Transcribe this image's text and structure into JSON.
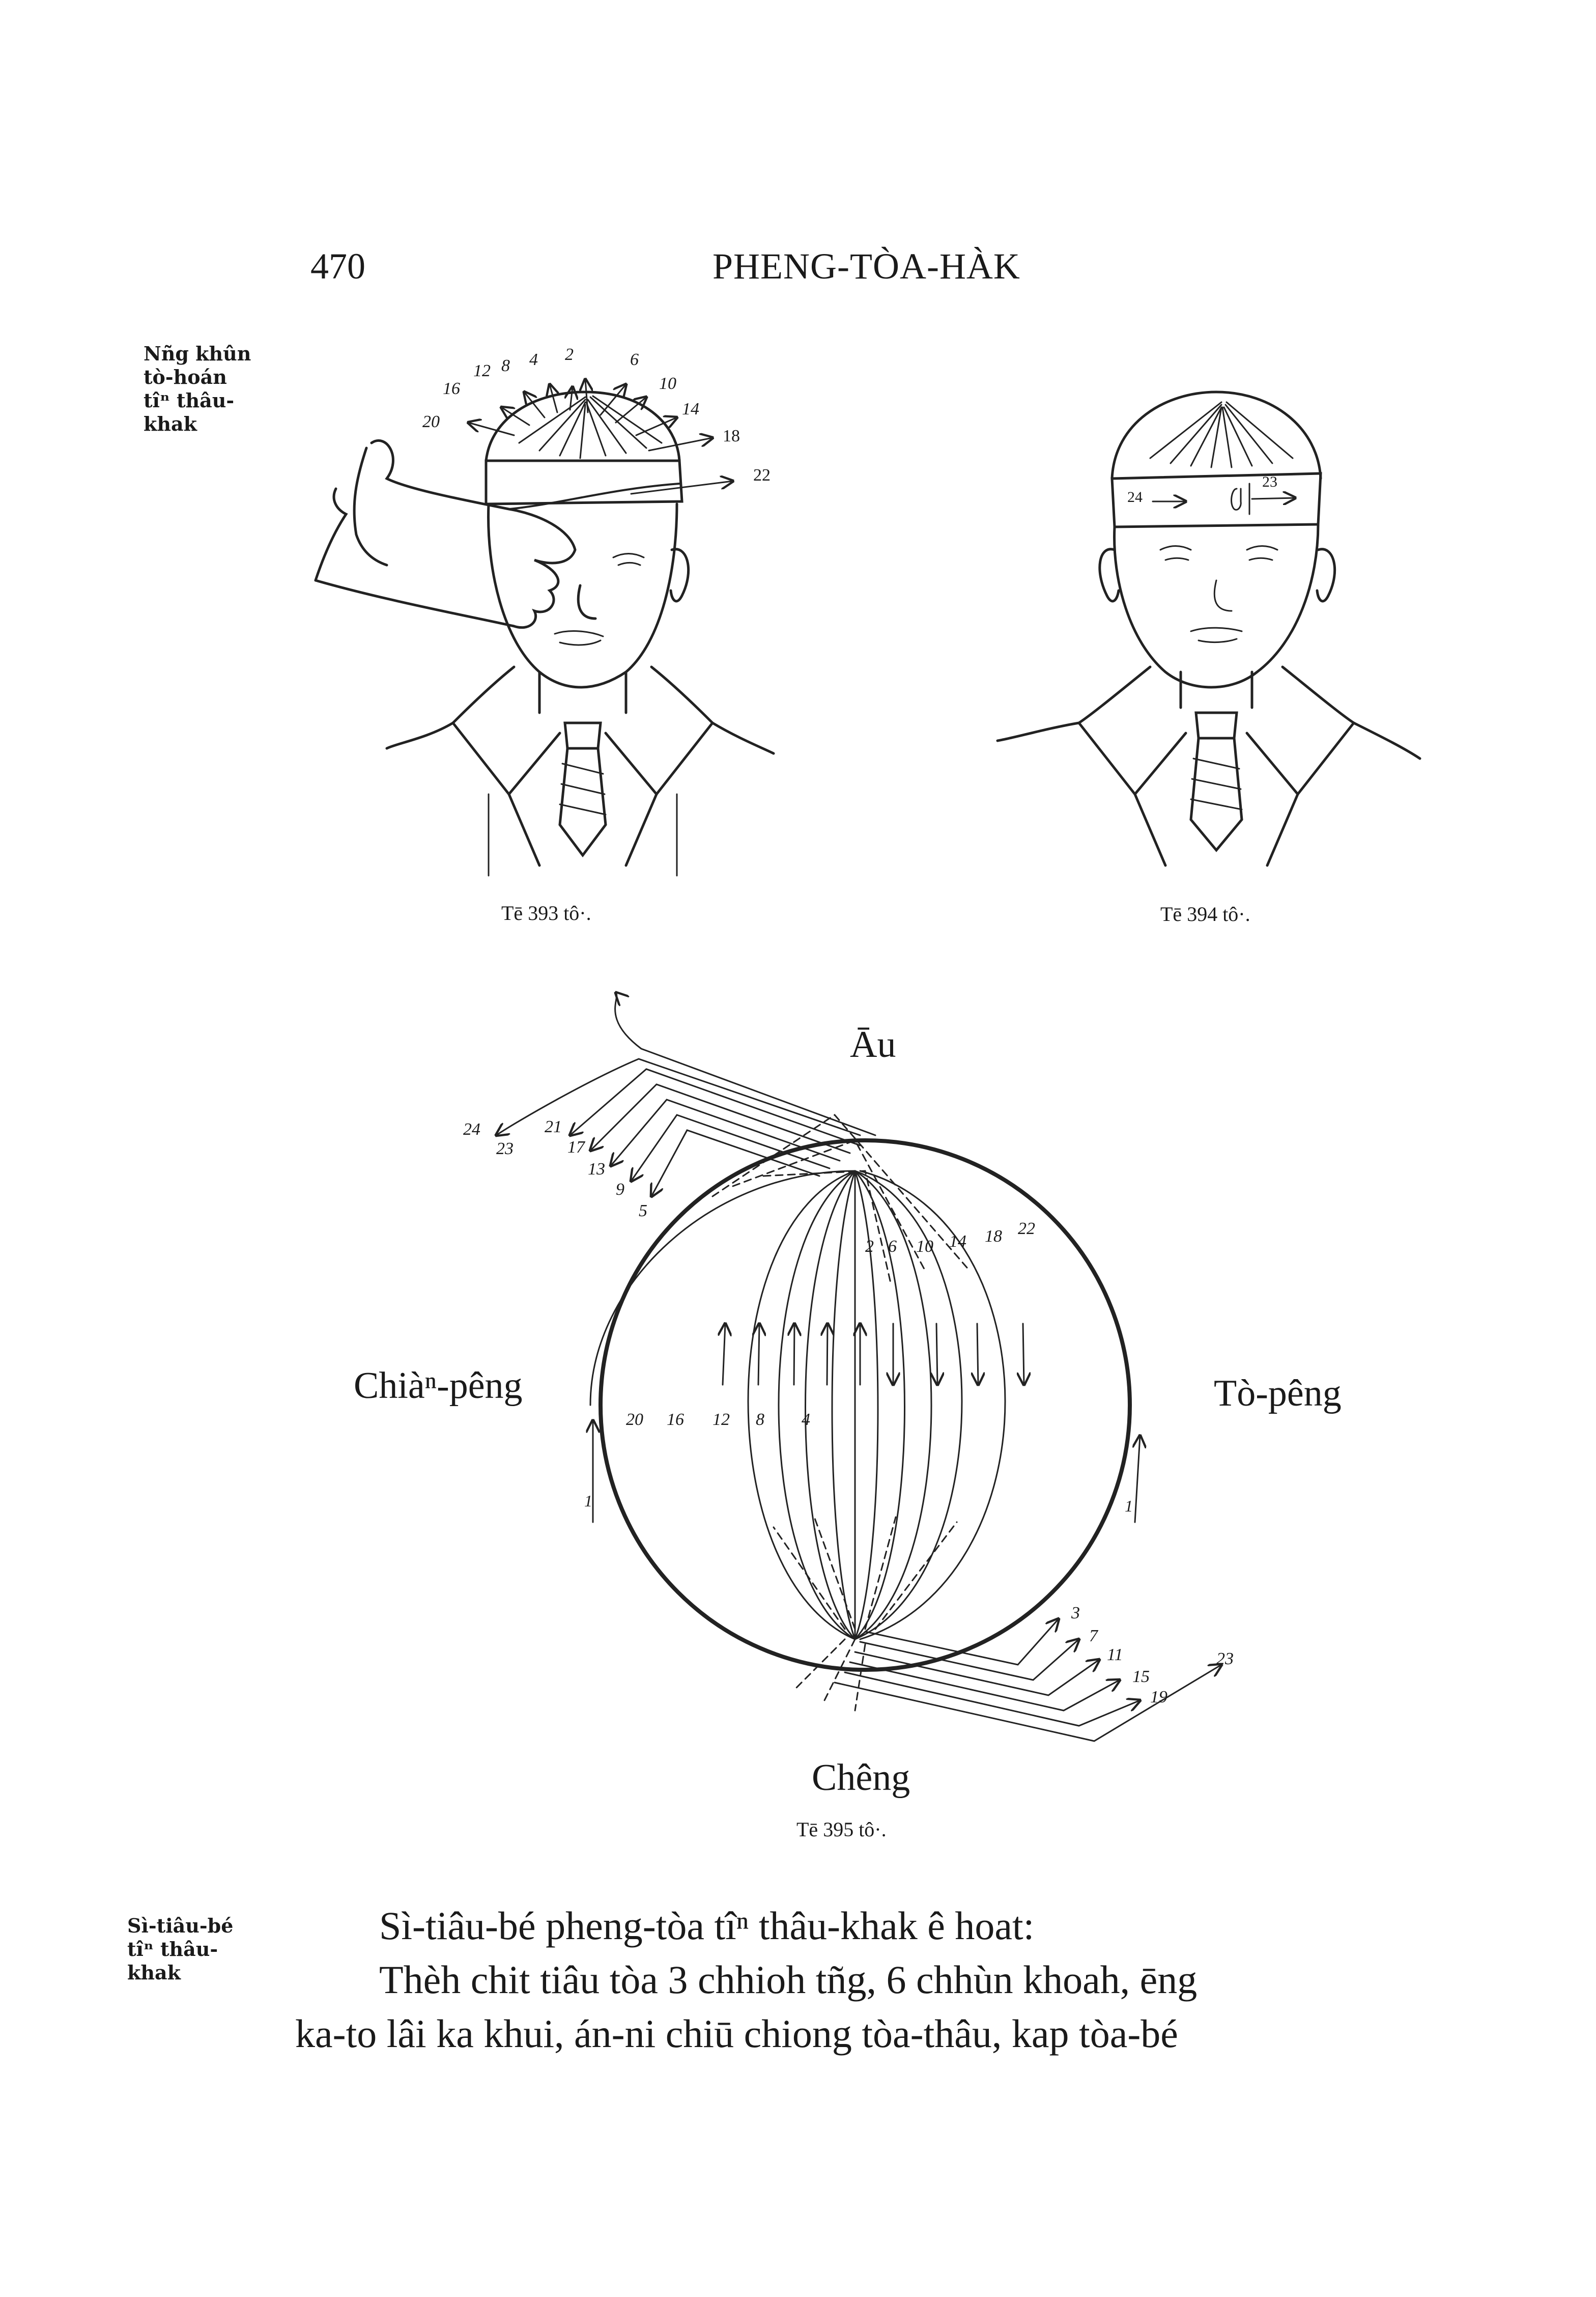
{
  "header": {
    "page_number": "470",
    "running_title": "PHENG-TÒA-HÀK"
  },
  "figure_393": {
    "margin_note": [
      "Nñg khûn",
      "tò-hoán",
      "tîⁿ thâu-",
      "khak"
    ],
    "arrow_numbers": [
      "2",
      "4",
      "6",
      "8",
      "10",
      "12",
      "14",
      "16",
      "18",
      "20",
      "22"
    ],
    "caption": "Tē 393 tô·."
  },
  "figure_394": {
    "arrow_numbers": [
      "24",
      "23"
    ],
    "caption": "Tē 394 tô·."
  },
  "figure_395": {
    "label_top": "Āu",
    "label_left": "Chiàⁿ-pêng",
    "label_right": "Tò-pêng",
    "label_bottom": "Chêng",
    "numbers_top_left": [
      "24",
      "23",
      "21",
      "17",
      "13",
      "9",
      "5"
    ],
    "numbers_inner_top": [
      "2",
      "6",
      "10",
      "14",
      "18",
      "22"
    ],
    "numbers_inner_left": [
      "20",
      "16",
      "12",
      "8",
      "4"
    ],
    "numbers_side": [
      "1",
      "1"
    ],
    "numbers_bottom_right": [
      "3",
      "7",
      "11",
      "15",
      "19",
      "23"
    ],
    "caption": "Tē 395 tô·."
  },
  "section": {
    "margin_note": [
      "Sì-tiâu-bé",
      "tîⁿ thâu-",
      "khak"
    ],
    "lines": [
      "Sì-tiâu-bé pheng-tòa tîⁿ thâu-khak ê hoat:",
      "Thèh chit tiâu tòa 3 chhioh tñg, 6 chhùn khoah, ēng",
      "ka-to lâi ka khui, án-ni chiū chiong tòa-thâu, kap tòa-bé"
    ]
  }
}
